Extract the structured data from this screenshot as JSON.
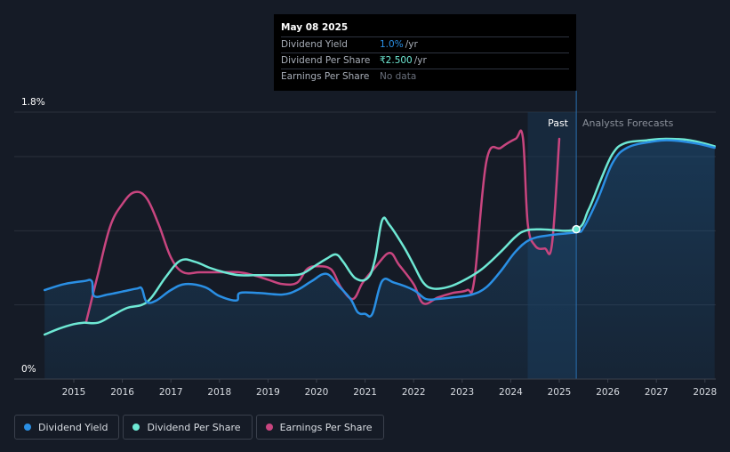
{
  "tooltip": {
    "date": "May 08 2025",
    "rows": [
      {
        "label": "Dividend Yield",
        "value": "1.0%",
        "unit": "/yr",
        "color": "#2a8fe4"
      },
      {
        "label": "Dividend Per Share",
        "value": "₹2.500",
        "unit": "/yr",
        "color": "#6ee8d4"
      },
      {
        "label": "Earnings Per Share",
        "value": "No data",
        "unit": "",
        "color": "#6a707c"
      }
    ]
  },
  "legend": [
    {
      "label": "Dividend Yield",
      "color": "#2a8fe4"
    },
    {
      "label": "Dividend Per Share",
      "color": "#6ee8d4"
    },
    {
      "label": "Earnings Per Share",
      "color": "#c8457f"
    }
  ],
  "chart_data": {
    "type": "line",
    "y_top_label": "1.8%",
    "y_bottom_label": "0%",
    "ylim": [
      0,
      1.8
    ],
    "xlim": [
      2014.4,
      2028.25
    ],
    "x_ticks": [
      "2015",
      "2016",
      "2017",
      "2018",
      "2019",
      "2020",
      "2021",
      "2022",
      "2023",
      "2024",
      "2025",
      "2026",
      "2027",
      "2028"
    ],
    "past_label": "Past",
    "forecast_label": "Analysts Forecasts",
    "past_region": [
      2024.35,
      2025.35
    ],
    "current_x": 2025.35,
    "series": [
      {
        "name": "Dividend Yield",
        "color": "#2a8fe4",
        "points": [
          [
            2014.4,
            0.6
          ],
          [
            2014.8,
            0.64
          ],
          [
            2015.2,
            0.66
          ],
          [
            2015.37,
            0.66
          ],
          [
            2015.42,
            0.56
          ],
          [
            2015.7,
            0.57
          ],
          [
            2016.0,
            0.59
          ],
          [
            2016.3,
            0.61
          ],
          [
            2016.4,
            0.61
          ],
          [
            2016.5,
            0.52
          ],
          [
            2016.7,
            0.53
          ],
          [
            2017.0,
            0.6
          ],
          [
            2017.3,
            0.64
          ],
          [
            2017.7,
            0.62
          ],
          [
            2018.0,
            0.56
          ],
          [
            2018.35,
            0.53
          ],
          [
            2018.42,
            0.58
          ],
          [
            2018.8,
            0.58
          ],
          [
            2019.3,
            0.57
          ],
          [
            2019.6,
            0.6
          ],
          [
            2019.9,
            0.66
          ],
          [
            2020.2,
            0.71
          ],
          [
            2020.45,
            0.63
          ],
          [
            2020.7,
            0.54
          ],
          [
            2020.85,
            0.45
          ],
          [
            2021.0,
            0.44
          ],
          [
            2021.15,
            0.44
          ],
          [
            2021.35,
            0.66
          ],
          [
            2021.6,
            0.65
          ],
          [
            2022.0,
            0.6
          ],
          [
            2022.25,
            0.54
          ],
          [
            2022.5,
            0.54
          ],
          [
            2022.8,
            0.55
          ],
          [
            2023.2,
            0.57
          ],
          [
            2023.5,
            0.62
          ],
          [
            2023.8,
            0.73
          ],
          [
            2024.1,
            0.86
          ],
          [
            2024.4,
            0.94
          ],
          [
            2024.8,
            0.97
          ],
          [
            2025.35,
            0.99
          ],
          [
            2025.5,
            1.02
          ],
          [
            2025.8,
            1.22
          ],
          [
            2026.1,
            1.46
          ],
          [
            2026.4,
            1.56
          ],
          [
            2026.9,
            1.6
          ],
          [
            2027.3,
            1.61
          ],
          [
            2027.8,
            1.59
          ],
          [
            2028.2,
            1.56
          ]
        ]
      },
      {
        "name": "Dividend Per Share",
        "color": "#6ee8d4",
        "points": [
          [
            2014.4,
            0.3
          ],
          [
            2014.7,
            0.34
          ],
          [
            2015.0,
            0.37
          ],
          [
            2015.2,
            0.38
          ],
          [
            2015.5,
            0.38
          ],
          [
            2015.8,
            0.43
          ],
          [
            2016.1,
            0.48
          ],
          [
            2016.4,
            0.5
          ],
          [
            2016.6,
            0.55
          ],
          [
            2016.9,
            0.69
          ],
          [
            2017.2,
            0.8
          ],
          [
            2017.5,
            0.79
          ],
          [
            2017.8,
            0.75
          ],
          [
            2018.1,
            0.72
          ],
          [
            2018.4,
            0.7
          ],
          [
            2018.7,
            0.7
          ],
          [
            2019.0,
            0.7
          ],
          [
            2019.4,
            0.7
          ],
          [
            2019.7,
            0.71
          ],
          [
            2020.0,
            0.77
          ],
          [
            2020.2,
            0.81
          ],
          [
            2020.4,
            0.84
          ],
          [
            2020.55,
            0.79
          ],
          [
            2020.8,
            0.68
          ],
          [
            2021.05,
            0.68
          ],
          [
            2021.2,
            0.8
          ],
          [
            2021.35,
            1.07
          ],
          [
            2021.5,
            1.04
          ],
          [
            2021.8,
            0.89
          ],
          [
            2022.0,
            0.77
          ],
          [
            2022.2,
            0.65
          ],
          [
            2022.4,
            0.61
          ],
          [
            2022.7,
            0.62
          ],
          [
            2023.0,
            0.66
          ],
          [
            2023.4,
            0.74
          ],
          [
            2023.8,
            0.86
          ],
          [
            2024.1,
            0.96
          ],
          [
            2024.3,
            1.0
          ],
          [
            2024.6,
            1.01
          ],
          [
            2025.35,
            1.01
          ],
          [
            2025.6,
            1.14
          ],
          [
            2025.85,
            1.34
          ],
          [
            2026.1,
            1.52
          ],
          [
            2026.35,
            1.59
          ],
          [
            2026.8,
            1.61
          ],
          [
            2027.2,
            1.62
          ],
          [
            2027.7,
            1.61
          ],
          [
            2028.2,
            1.57
          ]
        ]
      },
      {
        "name": "Earnings Per Share",
        "color": "#c8457f",
        "points": [
          [
            2015.25,
            0.38
          ],
          [
            2015.5,
            0.71
          ],
          [
            2015.75,
            1.03
          ],
          [
            2016.0,
            1.18
          ],
          [
            2016.25,
            1.26
          ],
          [
            2016.5,
            1.22
          ],
          [
            2016.75,
            1.04
          ],
          [
            2017.0,
            0.82
          ],
          [
            2017.25,
            0.72
          ],
          [
            2017.6,
            0.72
          ],
          [
            2018.0,
            0.72
          ],
          [
            2018.4,
            0.72
          ],
          [
            2018.7,
            0.7
          ],
          [
            2019.0,
            0.67
          ],
          [
            2019.3,
            0.64
          ],
          [
            2019.6,
            0.65
          ],
          [
            2019.8,
            0.74
          ],
          [
            2020.0,
            0.76
          ],
          [
            2020.3,
            0.74
          ],
          [
            2020.5,
            0.62
          ],
          [
            2020.75,
            0.54
          ],
          [
            2020.95,
            0.65
          ],
          [
            2021.2,
            0.75
          ],
          [
            2021.5,
            0.85
          ],
          [
            2021.7,
            0.77
          ],
          [
            2022.0,
            0.64
          ],
          [
            2022.2,
            0.51
          ],
          [
            2022.5,
            0.55
          ],
          [
            2022.8,
            0.58
          ],
          [
            2023.1,
            0.6
          ],
          [
            2023.25,
            0.67
          ],
          [
            2023.5,
            1.47
          ],
          [
            2023.8,
            1.56
          ],
          [
            2024.1,
            1.62
          ],
          [
            2024.25,
            1.63
          ],
          [
            2024.35,
            1.05
          ],
          [
            2024.5,
            0.9
          ],
          [
            2024.7,
            0.88
          ],
          [
            2024.85,
            0.91
          ],
          [
            2025.0,
            1.62
          ]
        ]
      }
    ]
  }
}
